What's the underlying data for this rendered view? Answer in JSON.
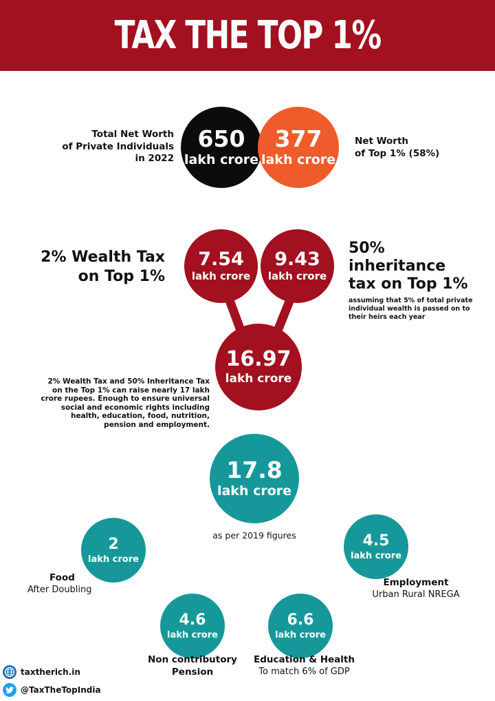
{
  "title": "TAX THE TOP 1%",
  "net_worth": {
    "total_label_1": "Total Net Worth",
    "total_label_2": "of Private Individuals",
    "total_label_3": "in 2022",
    "total_value": "650",
    "total_unit": "lakh crore",
    "top_value": "377",
    "top_unit": "lakh crore",
    "top_label_1": "Net Worth",
    "top_label_2": "of Top 1% (58%)"
  },
  "taxes": {
    "wealth_title_1": "2% Wealth Tax",
    "wealth_title_2": "on Top 1%",
    "wealth_value": "7.54",
    "wealth_unit": "lakh crore",
    "inherit_value": "9.43",
    "inherit_unit": "lakh crore",
    "inherit_title_1": "50%",
    "inherit_title_2": "inheritance",
    "inherit_title_3": "tax on Top 1%",
    "inherit_note_1": "assuming that 5% of total private",
    "inherit_note_2": "individual wealth is passed on to",
    "inherit_note_3": "their heirs each year",
    "total_value": "16.97",
    "total_unit": "lakh crore",
    "desc_1": "2% Wealth Tax and 50% Inheritance Tax",
    "desc_2": "on the Top 1% can raise nearly 17 lakh",
    "desc_3": "crore rupees. Enough to ensure universal",
    "desc_4": "social and economic rights including",
    "desc_5": "health, education, food, nutrition,",
    "desc_6": "pension and employment."
  },
  "spending": {
    "total_value": "17.8",
    "total_unit": "lakh crore",
    "total_note": "as per 2019 figures",
    "food_value": "2",
    "food_unit": "lakh crore",
    "food_label": "Food",
    "food_sub": "After Doubling",
    "emp_value": "4.5",
    "emp_unit": "lakh crore",
    "emp_label": "Employment",
    "emp_sub": "Urban Rural NREGA",
    "pension_value": "4.6",
    "pension_unit": "lakh crore",
    "pension_label_1": "Non contributory",
    "pension_label_2": "Pension",
    "edu_value": "6.6",
    "edu_unit": "lakh crore",
    "edu_label": "Education & Health",
    "edu_sub": "To match 6% of GDP"
  },
  "footer": {
    "website": "taxtherich.in",
    "twitter": "@TaxTheTopIndia",
    "globe_icon": "globe-icon",
    "twitter_icon": "twitter-bird-icon"
  },
  "colors": {
    "red": "#a3101f",
    "orange": "#ef5b2b",
    "teal": "#16989a",
    "black": "#0c0c0c"
  }
}
